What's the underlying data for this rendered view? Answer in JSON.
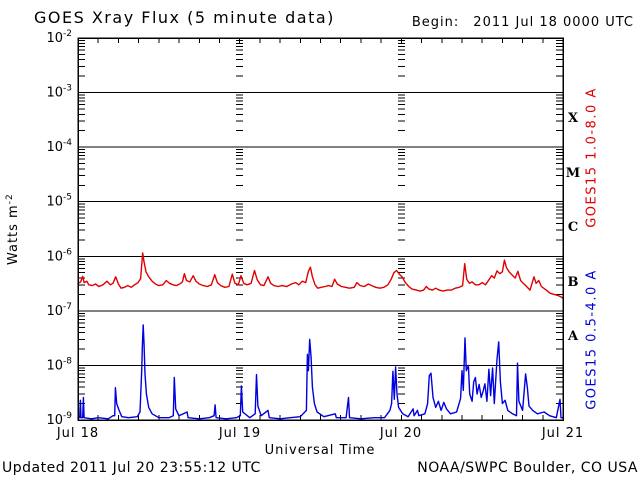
{
  "header": {
    "title": "GOES Xray Flux (5 minute data)",
    "begin_label": "Begin:",
    "begin_value": "2011 Jul 18 0000 UTC"
  },
  "footer": {
    "updated": "Updated 2011 Jul 20 23:55:12 UTC",
    "source": "NOAA/SWPC Boulder, CO USA"
  },
  "chart_data": {
    "type": "line",
    "title": "GOES Xray Flux (5 minute data)",
    "xlabel": "Universal Time",
    "ylabel": {
      "text": "Watts m",
      "sup": "-2"
    },
    "y_scale": "log",
    "y_tick_base": "10",
    "y_tick_exponents": [
      -2,
      -3,
      -4,
      -5,
      -6,
      -7,
      -8,
      -9
    ],
    "ylim": [
      1e-09,
      0.01
    ],
    "x_range_hours": [
      0,
      72
    ],
    "x_tick_labels": [
      "Jul 18",
      "Jul 19",
      "Jul 20",
      "Jul 21"
    ],
    "x_major_tick_hours": 3,
    "day_boundary_hours": [
      24,
      48
    ],
    "grid": {
      "horizontal": "solid line at each decade",
      "vertical": "log-minor dash columns at day boundaries"
    },
    "flare_classes": [
      "X",
      "M",
      "C",
      "B",
      "A"
    ],
    "legend_position": "right-margin, rotated",
    "axis_color": "#000000",
    "series": [
      {
        "name": "GOES15 1.0-8.0 A",
        "color": "#e00000",
        "points": [
          [
            0,
            3.2e-07
          ],
          [
            0.4,
            3.4e-07
          ],
          [
            0.7,
            4.3e-07
          ],
          [
            0.9,
            3.3e-07
          ],
          [
            1.3,
            3.5e-07
          ],
          [
            1.6,
            3e-07
          ],
          [
            2.1,
            2.9e-07
          ],
          [
            2.6,
            3.1e-07
          ],
          [
            3.1,
            2.8e-07
          ],
          [
            3.7,
            3e-07
          ],
          [
            4.3,
            3.5e-07
          ],
          [
            4.8,
            3e-07
          ],
          [
            5.2,
            3.2e-07
          ],
          [
            5.6,
            4.2e-07
          ],
          [
            6.0,
            3.1e-07
          ],
          [
            6.4,
            2.6e-07
          ],
          [
            6.9,
            2.7e-07
          ],
          [
            7.4,
            2.9e-07
          ],
          [
            7.9,
            2.7e-07
          ],
          [
            8.4,
            3e-07
          ],
          [
            8.9,
            3.3e-07
          ],
          [
            9.3,
            3.9e-07
          ],
          [
            9.6,
            1.15e-06
          ],
          [
            9.8,
            8e-07
          ],
          [
            10.1,
            5.2e-07
          ],
          [
            10.5,
            4.2e-07
          ],
          [
            11.0,
            3.5e-07
          ],
          [
            11.5,
            3.1e-07
          ],
          [
            12.0,
            2.9e-07
          ],
          [
            12.6,
            3e-07
          ],
          [
            13.1,
            3.6e-07
          ],
          [
            13.6,
            3.2e-07
          ],
          [
            14.1,
            3e-07
          ],
          [
            14.6,
            2.9e-07
          ],
          [
            15.1,
            3.1e-07
          ],
          [
            15.5,
            3.4e-07
          ],
          [
            15.8,
            4.8e-07
          ],
          [
            16.1,
            3.6e-07
          ],
          [
            16.6,
            3.4e-07
          ],
          [
            17.1,
            4.4e-07
          ],
          [
            17.5,
            3.5e-07
          ],
          [
            18.0,
            3.1e-07
          ],
          [
            18.6,
            2.9e-07
          ],
          [
            19.2,
            2.8e-07
          ],
          [
            19.8,
            3e-07
          ],
          [
            20.3,
            4.6e-07
          ],
          [
            20.7,
            3.3e-07
          ],
          [
            21.2,
            2.9e-07
          ],
          [
            21.8,
            2.7e-07
          ],
          [
            22.4,
            2.8e-07
          ],
          [
            22.9,
            4.7e-07
          ],
          [
            23.3,
            3.2e-07
          ],
          [
            23.8,
            3e-07
          ],
          [
            24.2,
            4.4e-07
          ],
          [
            24.6,
            3.2e-07
          ],
          [
            25.1,
            3e-07
          ],
          [
            25.7,
            3.2e-07
          ],
          [
            26.2,
            5.5e-07
          ],
          [
            26.6,
            3.7e-07
          ],
          [
            27.1,
            3e-07
          ],
          [
            27.6,
            2.9e-07
          ],
          [
            28.2,
            4.2e-07
          ],
          [
            28.6,
            3.2e-07
          ],
          [
            29.1,
            2.9e-07
          ],
          [
            29.7,
            2.8e-07
          ],
          [
            30.3,
            2.9e-07
          ],
          [
            31.0,
            2.8e-07
          ],
          [
            31.7,
            3.1e-07
          ],
          [
            32.3,
            3.3e-07
          ],
          [
            32.8,
            3e-07
          ],
          [
            33.3,
            3.5e-07
          ],
          [
            33.8,
            3.3e-07
          ],
          [
            34.2,
            5.3e-07
          ],
          [
            34.5,
            6.3e-07
          ],
          [
            34.8,
            4.2e-07
          ],
          [
            35.2,
            3e-07
          ],
          [
            35.6,
            2.6e-07
          ],
          [
            36.1,
            2.7e-07
          ],
          [
            36.7,
            2.8e-07
          ],
          [
            37.2,
            2.9e-07
          ],
          [
            37.7,
            2.8e-07
          ],
          [
            38.1,
            3.8e-07
          ],
          [
            38.5,
            3.1e-07
          ],
          [
            39.1,
            2.8e-07
          ],
          [
            39.7,
            2.7e-07
          ],
          [
            40.3,
            2.6e-07
          ],
          [
            41.0,
            2.7e-07
          ],
          [
            41.4,
            3.3e-07
          ],
          [
            41.9,
            2.9e-07
          ],
          [
            42.5,
            2.8e-07
          ],
          [
            43.1,
            3.1e-07
          ],
          [
            43.6,
            2.9e-07
          ],
          [
            44.2,
            2.7e-07
          ],
          [
            44.8,
            2.6e-07
          ],
          [
            45.4,
            2.7e-07
          ],
          [
            46.0,
            3e-07
          ],
          [
            46.5,
            3.8e-07
          ],
          [
            46.9,
            5e-07
          ],
          [
            47.3,
            5.5e-07
          ],
          [
            47.7,
            4.7e-07
          ],
          [
            48.1,
            4.2e-07
          ],
          [
            48.6,
            3.3e-07
          ],
          [
            49.1,
            2.8e-07
          ],
          [
            49.6,
            2.5e-07
          ],
          [
            50.2,
            2.4e-07
          ],
          [
            50.8,
            2.3e-07
          ],
          [
            51.3,
            2.4e-07
          ],
          [
            51.7,
            2.8e-07
          ],
          [
            52.1,
            2.5e-07
          ],
          [
            52.6,
            2.4e-07
          ],
          [
            53.1,
            2.6e-07
          ],
          [
            53.6,
            2.4e-07
          ],
          [
            54.2,
            2.3e-07
          ],
          [
            54.8,
            2.4e-07
          ],
          [
            55.4,
            2.4e-07
          ],
          [
            56.0,
            2.6e-07
          ],
          [
            56.6,
            2.7e-07
          ],
          [
            57.1,
            2.9e-07
          ],
          [
            57.4,
            7.3e-07
          ],
          [
            57.7,
            3.8e-07
          ],
          [
            58.1,
            3.2e-07
          ],
          [
            58.5,
            3.4e-07
          ],
          [
            59.0,
            3e-07
          ],
          [
            59.5,
            3e-07
          ],
          [
            60.0,
            3.3e-07
          ],
          [
            60.5,
            3e-07
          ],
          [
            61.0,
            3.7e-07
          ],
          [
            61.4,
            4.4e-07
          ],
          [
            61.8,
            4e-07
          ],
          [
            62.2,
            5.4e-07
          ],
          [
            62.6,
            4.8e-07
          ],
          [
            63.0,
            5.2e-07
          ],
          [
            63.3,
            8.5e-07
          ],
          [
            63.6,
            6.2e-07
          ],
          [
            64.0,
            5.2e-07
          ],
          [
            64.4,
            4.6e-07
          ],
          [
            64.9,
            4e-07
          ],
          [
            65.3,
            5.3e-07
          ],
          [
            65.7,
            3.6e-07
          ],
          [
            66.1,
            3.2e-07
          ],
          [
            66.6,
            2.8e-07
          ],
          [
            67.1,
            2.4e-07
          ],
          [
            67.7,
            4.2e-07
          ],
          [
            68.0,
            3.2e-07
          ],
          [
            68.4,
            3.6e-07
          ],
          [
            68.8,
            2.8e-07
          ],
          [
            69.5,
            2.4e-07
          ],
          [
            70.1,
            2.1e-07
          ],
          [
            70.7,
            2e-07
          ],
          [
            71.3,
            1.9e-07
          ],
          [
            71.7,
            1.8e-07
          ],
          [
            72,
            1.7e-07
          ]
        ]
      },
      {
        "name": "GOES15 0.5-4.0 A",
        "color": "#0000e0",
        "points": [
          [
            0,
            1.1e-09
          ],
          [
            0.25,
            1.1e-09
          ],
          [
            0.35,
            2.3e-09
          ],
          [
            0.45,
            1.1e-09
          ],
          [
            0.7,
            1.1e-09
          ],
          [
            0.8,
            2.6e-09
          ],
          [
            0.9,
            1.1e-09
          ],
          [
            2,
            1.05e-09
          ],
          [
            3,
            1.1e-09
          ],
          [
            4.5,
            1.05e-09
          ],
          [
            5.2,
            1.2e-09
          ],
          [
            5.45,
            1.2e-09
          ],
          [
            5.55,
            3.9e-09
          ],
          [
            5.75,
            2e-09
          ],
          [
            6.1,
            1.5e-09
          ],
          [
            6.5,
            1.15e-09
          ],
          [
            7.5,
            1.1e-09
          ],
          [
            8.8,
            1.15e-09
          ],
          [
            9.2,
            1.4e-09
          ],
          [
            9.45,
            8e-09
          ],
          [
            9.55,
            2.1e-08
          ],
          [
            9.68,
            5.5e-08
          ],
          [
            9.8,
            2.6e-08
          ],
          [
            9.95,
            7e-09
          ],
          [
            10.15,
            3e-09
          ],
          [
            10.5,
            1.7e-09
          ],
          [
            11,
            1.3e-09
          ],
          [
            12,
            1.1e-09
          ],
          [
            13.5,
            1.1e-09
          ],
          [
            14.15,
            1.2e-09
          ],
          [
            14.3,
            6e-09
          ],
          [
            14.5,
            1.6e-09
          ],
          [
            15,
            1.2e-09
          ],
          [
            16.2,
            1.4e-09
          ],
          [
            16.35,
            1.1e-09
          ],
          [
            18,
            1.05e-09
          ],
          [
            19.5,
            1.1e-09
          ],
          [
            20.2,
            1.2e-09
          ],
          [
            20.35,
            1.9e-09
          ],
          [
            20.5,
            1.1e-09
          ],
          [
            22,
            1.05e-09
          ],
          [
            23.5,
            1.1e-09
          ],
          [
            24.1,
            1.2e-09
          ],
          [
            24.25,
            4.2e-09
          ],
          [
            24.45,
            1.4e-09
          ],
          [
            25.5,
            1.1e-09
          ],
          [
            26.3,
            1.3e-09
          ],
          [
            26.5,
            6.8e-09
          ],
          [
            26.7,
            1.8e-09
          ],
          [
            27.2,
            1.2e-09
          ],
          [
            28.2,
            1.5e-09
          ],
          [
            28.4,
            1.1e-09
          ],
          [
            30,
            1.05e-09
          ],
          [
            31.5,
            1.1e-09
          ],
          [
            33,
            1.15e-09
          ],
          [
            33.9,
            1.5e-09
          ],
          [
            34.05,
            1.6e-08
          ],
          [
            34.2,
            8e-09
          ],
          [
            34.4,
            3e-08
          ],
          [
            34.6,
            1.4e-08
          ],
          [
            34.8,
            4e-09
          ],
          [
            35.1,
            2e-09
          ],
          [
            35.5,
            1.4e-09
          ],
          [
            36.5,
            1.15e-09
          ],
          [
            38.2,
            1.3e-09
          ],
          [
            38.35,
            1.1e-09
          ],
          [
            39.8,
            1.1e-09
          ],
          [
            40.15,
            2.6e-09
          ],
          [
            40.3,
            1.1e-09
          ],
          [
            42,
            1.05e-09
          ],
          [
            44,
            1.1e-09
          ],
          [
            45.5,
            1.1e-09
          ],
          [
            46.3,
            1.5e-09
          ],
          [
            46.55,
            2e-09
          ],
          [
            46.75,
            7.8e-09
          ],
          [
            46.95,
            2.4e-09
          ],
          [
            47.15,
            9.4e-09
          ],
          [
            47.35,
            3e-09
          ],
          [
            47.6,
            1.7e-09
          ],
          [
            48.2,
            1.3e-09
          ],
          [
            49,
            1.15e-09
          ],
          [
            49.75,
            1.6e-09
          ],
          [
            49.9,
            1.2e-09
          ],
          [
            50.4,
            1.5e-09
          ],
          [
            50.6,
            1.2e-09
          ],
          [
            51.5,
            1.3e-09
          ],
          [
            51.9,
            2e-09
          ],
          [
            52.15,
            6.5e-09
          ],
          [
            52.4,
            7.2e-09
          ],
          [
            52.7,
            2.6e-09
          ],
          [
            53.1,
            1.7e-09
          ],
          [
            53.5,
            2.2e-09
          ],
          [
            53.9,
            1.5e-09
          ],
          [
            54.3,
            2.1e-09
          ],
          [
            54.7,
            1.6e-09
          ],
          [
            55.3,
            1.3e-09
          ],
          [
            56.2,
            1.4e-09
          ],
          [
            56.8,
            2.5e-09
          ],
          [
            57.0,
            8e-09
          ],
          [
            57.2,
            3.5e-09
          ],
          [
            57.45,
            3.2e-08
          ],
          [
            57.65,
            8e-09
          ],
          [
            57.95,
            1e-08
          ],
          [
            58.15,
            3e-09
          ],
          [
            58.5,
            2.2e-09
          ],
          [
            58.75,
            5e-09
          ],
          [
            59.0,
            6e-09
          ],
          [
            59.25,
            3e-09
          ],
          [
            59.55,
            4.5e-09
          ],
          [
            59.85,
            2.6e-09
          ],
          [
            60.1,
            3.2e-09
          ],
          [
            60.4,
            4.6e-09
          ],
          [
            60.7,
            2.2e-09
          ],
          [
            61.0,
            8.5e-09
          ],
          [
            61.25,
            2.8e-09
          ],
          [
            61.55,
            9e-09
          ],
          [
            61.8,
            2e-09
          ],
          [
            62.2,
            1.3e-08
          ],
          [
            62.45,
            2.7e-08
          ],
          [
            62.7,
            5e-09
          ],
          [
            63.0,
            2e-09
          ],
          [
            63.4,
            2.3e-09
          ],
          [
            63.8,
            1.5e-09
          ],
          [
            64.5,
            1.3e-09
          ],
          [
            65.1,
            1.2e-09
          ],
          [
            65.25,
            1.1e-08
          ],
          [
            65.45,
            2.2e-09
          ],
          [
            66.0,
            1.5e-09
          ],
          [
            66.45,
            7e-09
          ],
          [
            66.7,
            4e-09
          ],
          [
            66.95,
            1.8e-09
          ],
          [
            67.5,
            1.5e-09
          ],
          [
            68.2,
            1.3e-09
          ],
          [
            69.2,
            1.4e-09
          ],
          [
            70,
            1.2e-09
          ],
          [
            71,
            1.1e-09
          ],
          [
            71.55,
            2.4e-09
          ],
          [
            71.7,
            1.1e-09
          ],
          [
            72,
            1.1e-09
          ]
        ]
      }
    ]
  }
}
